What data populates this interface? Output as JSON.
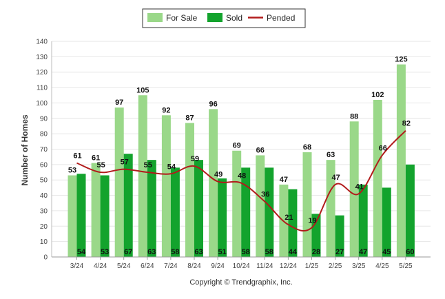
{
  "chart_data": {
    "type": "bar",
    "ylabel": "Number of Homes",
    "ylim": [
      0,
      140
    ],
    "yticks": [
      0,
      10,
      20,
      30,
      40,
      50,
      60,
      70,
      80,
      90,
      100,
      110,
      120,
      130,
      140
    ],
    "categories": [
      "3/24",
      "4/24",
      "5/24",
      "6/24",
      "7/24",
      "8/24",
      "9/24",
      "10/24",
      "11/24",
      "12/24",
      "1/25",
      "2/25",
      "3/25",
      "4/25",
      "5/25"
    ],
    "series": [
      {
        "name": "For Sale",
        "kind": "bar",
        "color": "#9ad889",
        "values": [
          53,
          61,
          97,
          105,
          92,
          87,
          96,
          69,
          66,
          47,
          68,
          63,
          88,
          102,
          125
        ]
      },
      {
        "name": "Sold",
        "kind": "bar",
        "color": "#13a32d",
        "values": [
          54,
          53,
          67,
          63,
          58,
          63,
          51,
          58,
          58,
          44,
          28,
          27,
          47,
          45,
          60
        ]
      },
      {
        "name": "Pended",
        "kind": "line",
        "color": "#b21b1b",
        "values": [
          61,
          55,
          57,
          55,
          54,
          59,
          49,
          48,
          36,
          21,
          19,
          47,
          41,
          66,
          82
        ]
      }
    ],
    "legend": "top-center",
    "grid": true
  },
  "footer": {
    "copyright": "Copyright © Trendgraphix, Inc."
  }
}
